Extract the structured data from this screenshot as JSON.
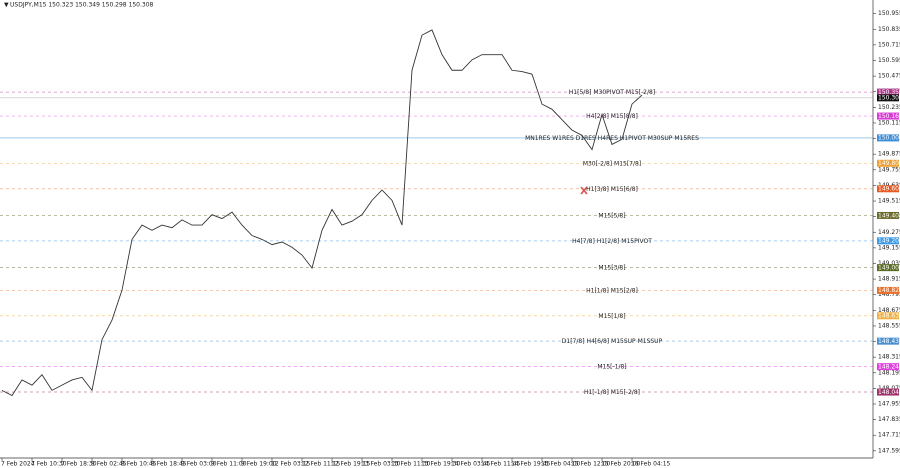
{
  "chart_data": {
    "type": "line",
    "title": "USDJPY,M15  150.323 150.349 150.298 150.308",
    "categories": [
      "7 Feb 2024",
      null,
      null,
      "7 Feb 10:30",
      null,
      null,
      "7 Feb 18:30",
      null,
      null,
      "8 Feb 02:45",
      null,
      null,
      "8 Feb 10:45",
      null,
      null,
      "8 Feb 18:45",
      null,
      null,
      "9 Feb 03:00",
      null,
      null,
      "9 Feb 11:00",
      null,
      null,
      "9 Feb 19:00",
      null,
      null,
      "12 Feb 03:15",
      null,
      null,
      "12 Feb 11:15",
      null,
      null,
      "12 Feb 19:15",
      null,
      null,
      "13 Feb 03:30",
      null,
      null,
      "13 Feb 11:30",
      null,
      null,
      "13 Feb 19:30",
      null,
      null,
      "14 Feb 03:45",
      null,
      null,
      "14 Feb 11:45",
      null,
      null,
      "14 Feb 19:45",
      null,
      null,
      "15 Feb 04:00",
      null,
      null,
      "15 Feb 12:00",
      null,
      null,
      "15 Feb 20:00",
      null,
      null,
      "16 Feb 04:15",
      null
    ],
    "series": [
      {
        "color": "#333333",
        "values": [
          148.06,
          148.02,
          148.14,
          148.1,
          148.18,
          148.06,
          148.1,
          148.14,
          148.16,
          148.06,
          148.45,
          148.6,
          148.83,
          149.22,
          149.33,
          149.29,
          149.33,
          149.31,
          149.37,
          149.33,
          149.33,
          149.41,
          149.38,
          149.43,
          149.33,
          149.25,
          149.22,
          149.18,
          149.2,
          149.16,
          149.1,
          149.0,
          149.29,
          149.45,
          149.33,
          149.36,
          149.41,
          149.52,
          149.6,
          149.52,
          149.33,
          150.52,
          150.79,
          150.83,
          150.64,
          150.52,
          150.52,
          150.6,
          150.64,
          150.64,
          150.64,
          150.52,
          150.51,
          150.49,
          150.26,
          150.22,
          150.14,
          150.06,
          150.02,
          149.91,
          150.18,
          149.95,
          149.99,
          150.26,
          150.33
        ]
      }
    ],
    "ylim": [
      147.54,
      151.06
    ],
    "yticks": [
      147.595,
      147.715,
      147.835,
      147.955,
      148.075,
      148.195,
      148.315,
      148.435,
      148.555,
      148.675,
      148.795,
      148.915,
      149.035,
      149.155,
      149.275,
      149.395,
      149.515,
      149.635,
      149.755,
      149.875,
      149.995,
      150.115,
      150.235,
      150.355,
      150.475,
      150.595,
      150.715,
      150.835,
      150.955
    ],
    "last_price": 150.308,
    "levels": [
      {
        "price": 150.352,
        "text": "H1[5/8] M30PIVOT M15[-2/8]",
        "color": "#b0388e"
      },
      {
        "price": 150.168,
        "text": "H4[2/8] M15[8/8]",
        "color": "#d93ad6"
      },
      {
        "price": {
          "value": 150,
          "label": "150.000"
        },
        "text": "MN1RES W1RES D1RES H4RES H1PIVOT M30SUP M15RES",
        "color": "#3b8fd8"
      },
      {
        "price": 149.805,
        "text": "M30[-2/8] M15[7/8]",
        "color": "#f0a030"
      },
      {
        "price": 149.609,
        "text": "H1[3/8] M15[6/8]",
        "color": "#e85a20"
      },
      {
        "price": 149.404,
        "text": "M15[5/8]",
        "color": "#6b6b2a"
      },
      {
        "price": 149.209,
        "text": "H4[7/8] H1[2/8] M15PIVOT",
        "color": "#3b9ae8"
      },
      {
        "price": 149.003,
        "text": "M15[3/8]",
        "color": "#5a6b22"
      },
      {
        "price": 148.828,
        "text": "H1[1/8] M15[2/8]",
        "color": "#e8702a"
      },
      {
        "price": 148.633,
        "text": "M15[1/8]",
        "color": "#f0b040"
      },
      {
        "price": 148.438,
        "text": "D1[7/8] H4[6/8] M15SUP M1SSUP",
        "color": "#4a90d0"
      },
      {
        "price": 148.242,
        "text": "M15[-1/8]",
        "color": "#e040e0"
      },
      {
        "price": 148.047,
        "text": "H1[-1/8] M15[-2/8]",
        "color": "#a0306a"
      }
    ]
  }
}
